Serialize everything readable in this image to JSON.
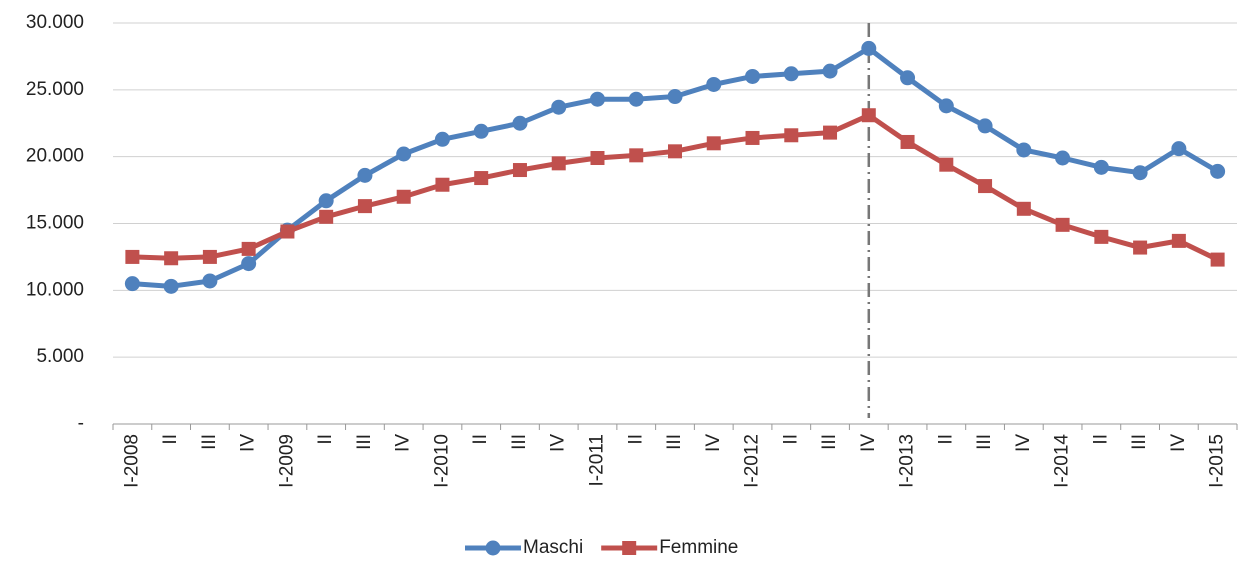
{
  "chart_data": {
    "type": "line",
    "categories": [
      "I-2008",
      "II",
      "III",
      "IV",
      "I-2009",
      "II",
      "III",
      "IV",
      "I-2010",
      "II",
      "III",
      "IV",
      "I-2011",
      "II",
      "III",
      "IV",
      "I-2012",
      "II",
      "III",
      "IV",
      "I-2013",
      "II",
      "III",
      "IV",
      "I-2014",
      "II",
      "III",
      "IV",
      "I-2015"
    ],
    "series": [
      {
        "name": "Maschi",
        "color": "#4f81bd",
        "marker": "circle",
        "values": [
          10500,
          10300,
          10700,
          12000,
          14500,
          16700,
          18600,
          20200,
          21300,
          21900,
          22500,
          23700,
          24300,
          24300,
          24500,
          25400,
          26000,
          26200,
          26400,
          28100,
          25900,
          23800,
          22300,
          20500,
          19900,
          19200,
          18800,
          20600,
          18900
        ]
      },
      {
        "name": "Femmine",
        "color": "#c0504d",
        "marker": "square",
        "values": [
          12500,
          12400,
          12500,
          13100,
          14400,
          15500,
          16300,
          17000,
          17900,
          18400,
          19000,
          19500,
          19900,
          20100,
          20400,
          21000,
          21400,
          21600,
          21800,
          23100,
          21100,
          19400,
          17800,
          16100,
          14900,
          14000,
          13200,
          13700,
          12300
        ]
      }
    ],
    "ylim": [
      0,
      30000
    ],
    "yticks": [
      {
        "value": 0,
        "label": "-"
      },
      {
        "value": 5000,
        "label": "5.000"
      },
      {
        "value": 10000,
        "label": "10.000"
      },
      {
        "value": 15000,
        "label": "15.000"
      },
      {
        "value": 20000,
        "label": "20.000"
      },
      {
        "value": 25000,
        "label": "25.000"
      },
      {
        "value": 30000,
        "label": "30.000"
      }
    ],
    "grid": true,
    "legend": "bottom"
  }
}
